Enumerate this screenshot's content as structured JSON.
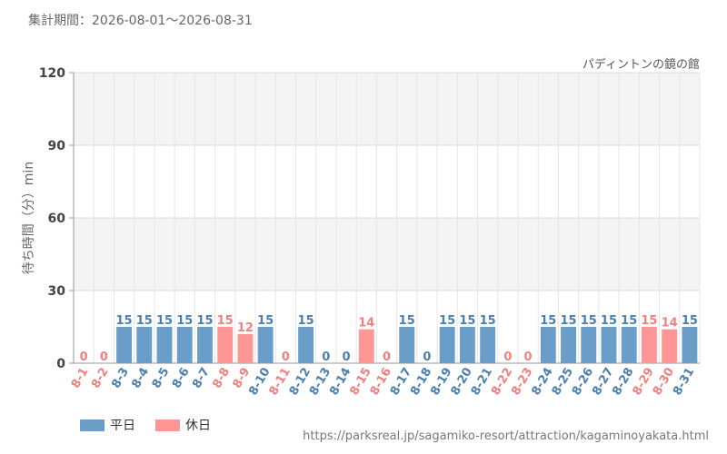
{
  "header": {
    "period": "集計期間：2026-08-01～2026-08-31",
    "attraction": "パディントンの鏡の館"
  },
  "legend": [
    {
      "label": "平日",
      "color": "#6a9dc8"
    },
    {
      "label": "休日",
      "color": "#ff9696"
    }
  ],
  "source_url": "https://parksreal.jp/sagamiko-resort/attraction/kagaminoyakata.html",
  "chart_data": {
    "type": "bar",
    "ylabel": "待ち時間（分）min",
    "xlabel": "",
    "ylim": [
      0,
      120
    ],
    "yticks": [
      0,
      30,
      60,
      90,
      120
    ],
    "categories": [
      "8-1",
      "8-2",
      "8-3",
      "8-4",
      "8-5",
      "8-6",
      "8-7",
      "8-8",
      "8-9",
      "8-10",
      "8-11",
      "8-12",
      "8-13",
      "8-14",
      "8-15",
      "8-16",
      "8-17",
      "8-18",
      "8-19",
      "8-20",
      "8-21",
      "8-22",
      "8-23",
      "8-24",
      "8-25",
      "8-26",
      "8-27",
      "8-28",
      "8-29",
      "8-30",
      "8-31"
    ],
    "values": [
      0,
      0,
      15,
      15,
      15,
      15,
      15,
      15,
      12,
      15,
      0,
      15,
      0,
      0,
      14,
      0,
      15,
      0,
      15,
      15,
      15,
      0,
      0,
      15,
      15,
      15,
      15,
      15,
      15,
      14,
      15
    ],
    "day_type": [
      "休日",
      "休日",
      "平日",
      "平日",
      "平日",
      "平日",
      "平日",
      "休日",
      "休日",
      "平日",
      "休日",
      "平日",
      "平日",
      "平日",
      "休日",
      "休日",
      "平日",
      "平日",
      "平日",
      "平日",
      "平日",
      "休日",
      "休日",
      "平日",
      "平日",
      "平日",
      "平日",
      "平日",
      "休日",
      "休日",
      "平日"
    ],
    "colors": {
      "平日": "#6a9dc8",
      "休日": "#ff9696",
      "平日_text": "#4a7fb0",
      "休日_text": "#f08080"
    },
    "grid": true,
    "legend_position": "bottom-left"
  }
}
